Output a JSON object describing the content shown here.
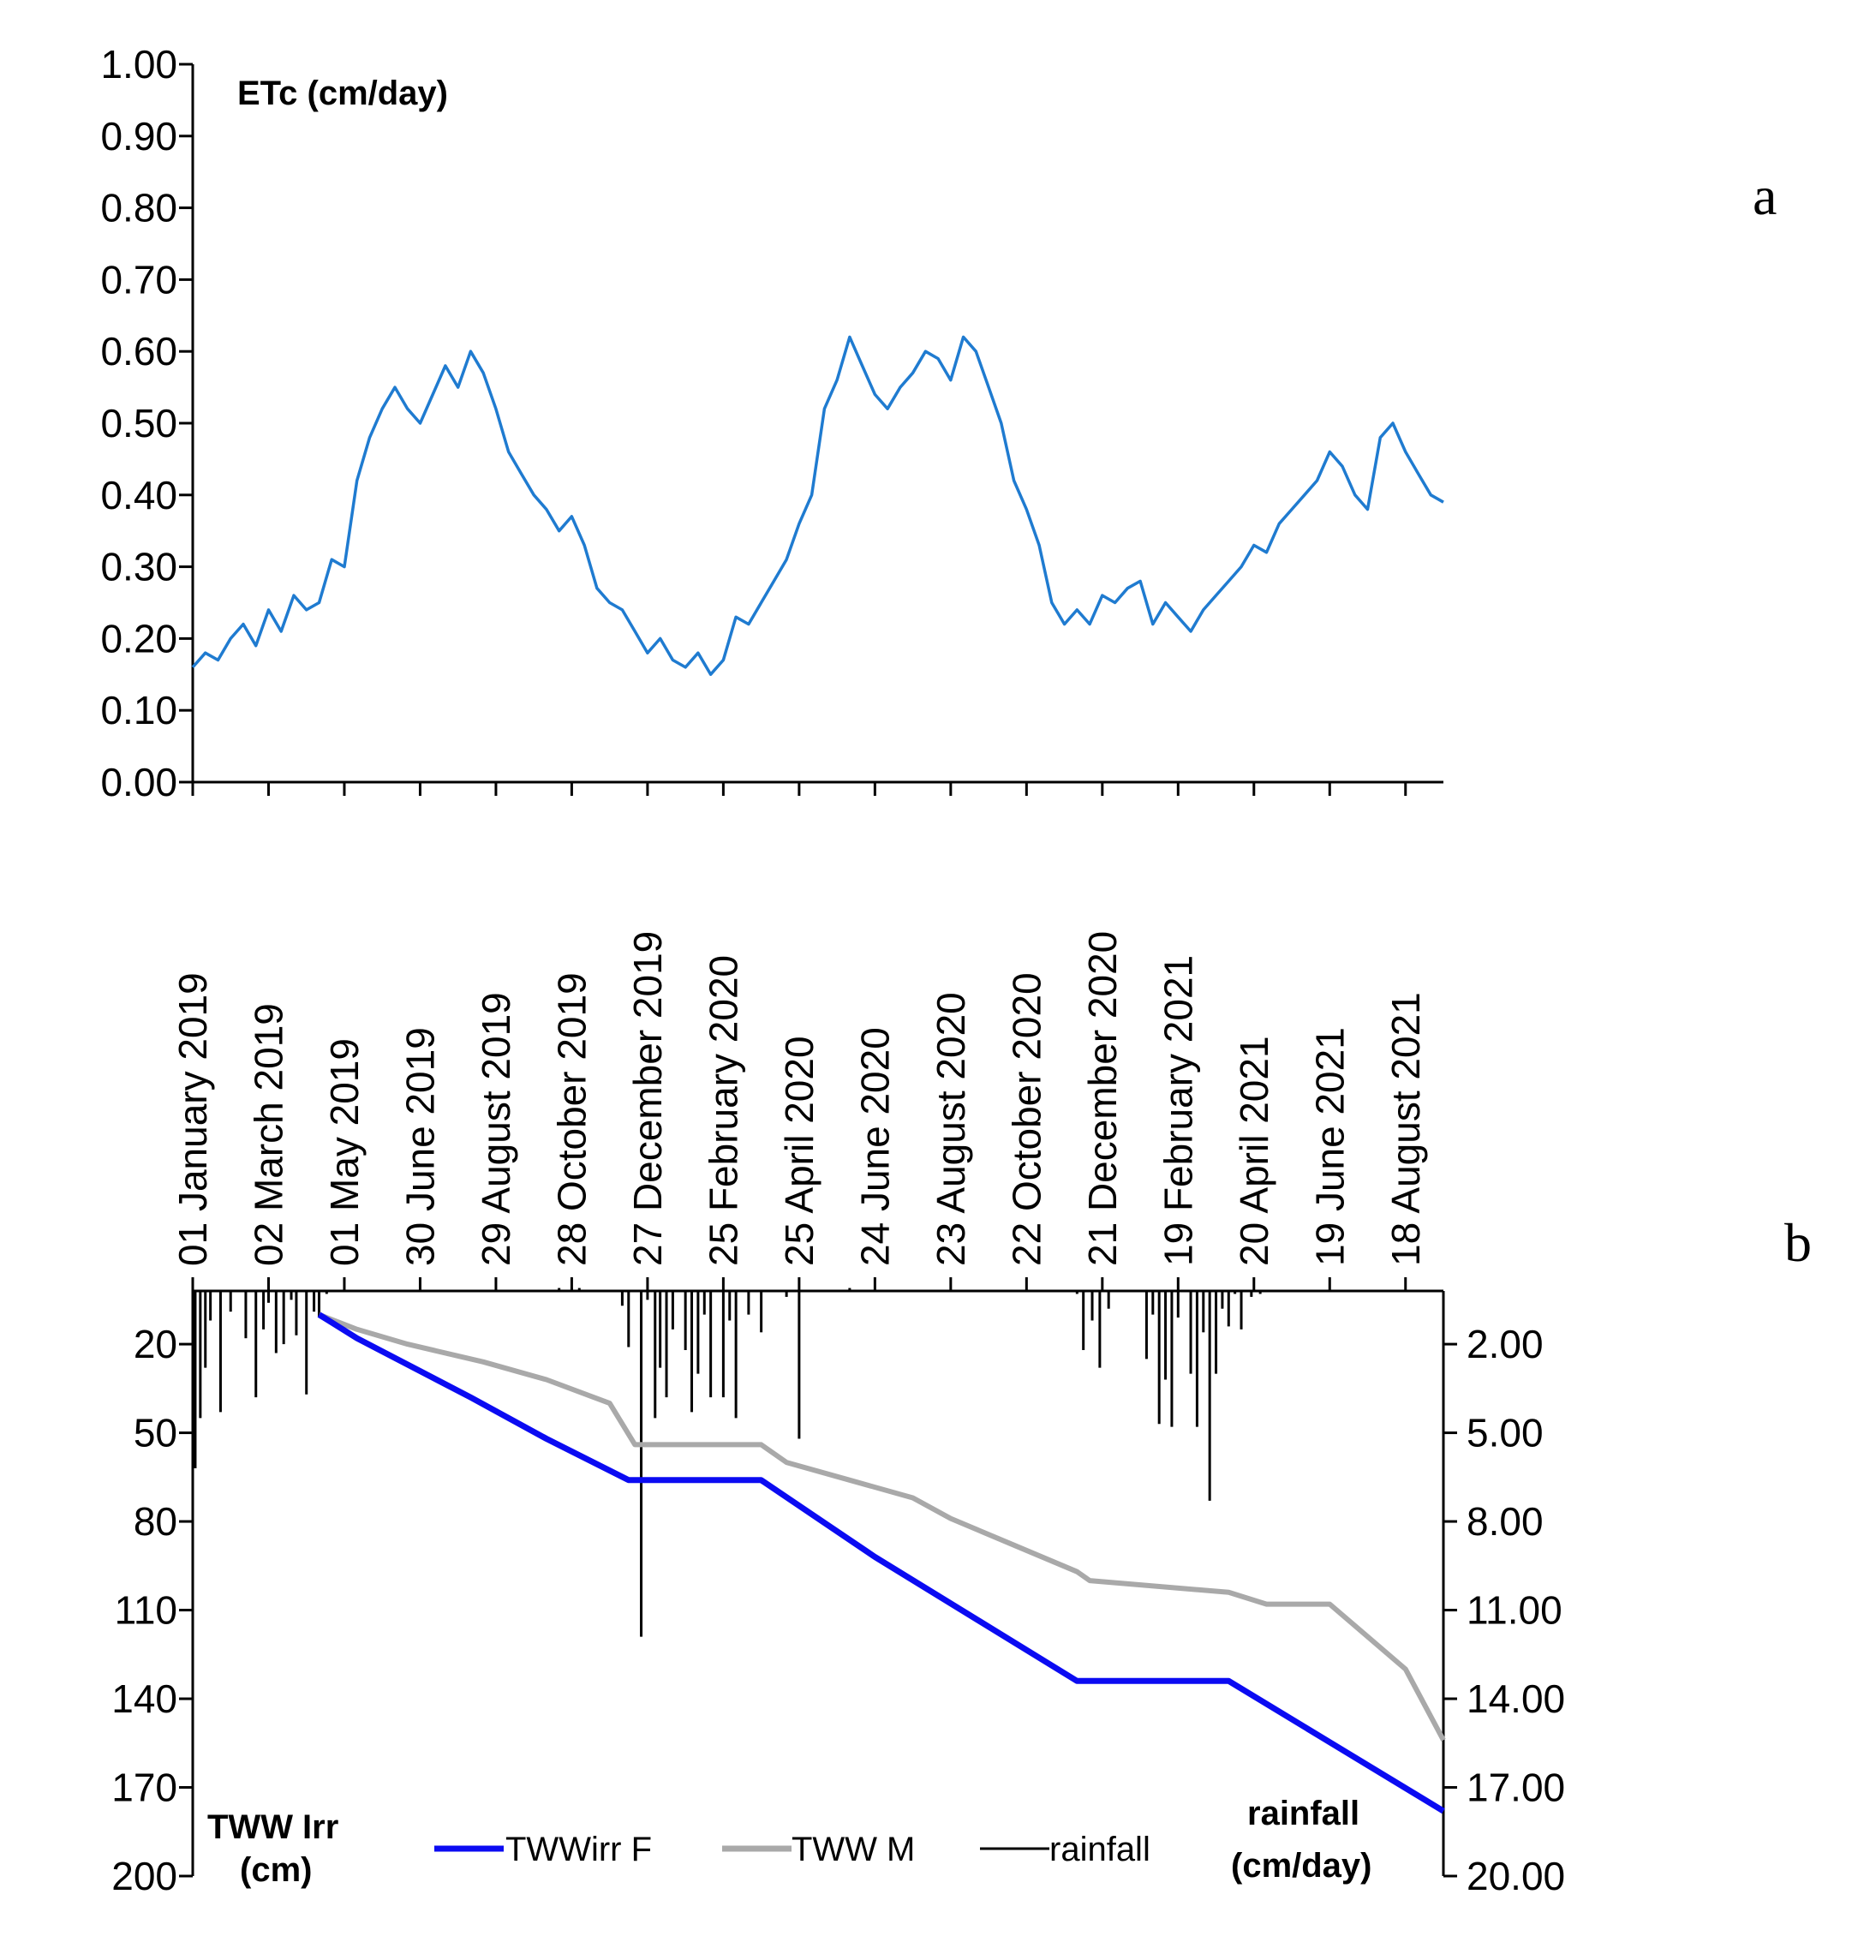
{
  "chart_data": [
    {
      "type": "line",
      "panel": "a",
      "ylabel": "ETc (cm/day)",
      "ylim": [
        0,
        1
      ],
      "y_ticks": [
        "0.00",
        "0.10",
        "0.20",
        "0.30",
        "0.40",
        "0.50",
        "0.60",
        "0.70",
        "0.80",
        "0.90",
        "1.00"
      ],
      "x_tick_labels": [
        "01 January 2019",
        "02 March 2019",
        "01 May 2019",
        "30 June 2019",
        "29 August 2019",
        "28 October 2019",
        "27 December 2019",
        "25 February 2020",
        "25 April 2020",
        "24 June 2020",
        "23 August 2020",
        "22 October 2020",
        "21 December 2020",
        "19 February 2021",
        "20 April 2021",
        "19 June 2021",
        "18 August 2021"
      ],
      "xlim_days": [
        0,
        990
      ],
      "series": [
        {
          "name": "ETc",
          "color": "#1f7bd0",
          "days": [
            0,
            10,
            20,
            30,
            40,
            50,
            60,
            70,
            80,
            90,
            100,
            110,
            120,
            130,
            140,
            150,
            160,
            170,
            180,
            190,
            200,
            210,
            220,
            230,
            240,
            250,
            260,
            270,
            280,
            290,
            300,
            310,
            320,
            330,
            340,
            350,
            360,
            370,
            380,
            390,
            400,
            410,
            420,
            430,
            440,
            450,
            460,
            470,
            480,
            490,
            500,
            510,
            520,
            530,
            540,
            550,
            560,
            570,
            580,
            590,
            600,
            610,
            620,
            630,
            640,
            650,
            660,
            670,
            680,
            690,
            700,
            710,
            720,
            730,
            740,
            750,
            760,
            770,
            780,
            790,
            800,
            810,
            820,
            830,
            840,
            850,
            860,
            870,
            880,
            890,
            900,
            910,
            920,
            930,
            940,
            950,
            960,
            970,
            980,
            990
          ],
          "values": [
            0.16,
            0.18,
            0.17,
            0.2,
            0.22,
            0.19,
            0.24,
            0.21,
            0.26,
            0.24,
            0.25,
            0.31,
            0.3,
            0.42,
            0.48,
            0.52,
            0.55,
            0.52,
            0.5,
            0.54,
            0.58,
            0.55,
            0.6,
            0.57,
            0.52,
            0.46,
            0.43,
            0.4,
            0.38,
            0.35,
            0.37,
            0.33,
            0.27,
            0.25,
            0.24,
            0.21,
            0.18,
            0.2,
            0.17,
            0.16,
            0.18,
            0.15,
            0.17,
            0.23,
            0.22,
            0.25,
            0.28,
            0.31,
            0.36,
            0.4,
            0.52,
            0.56,
            0.62,
            0.58,
            0.54,
            0.52,
            0.55,
            0.57,
            0.6,
            0.59,
            0.56,
            0.62,
            0.6,
            0.55,
            0.5,
            0.42,
            0.38,
            0.33,
            0.25,
            0.22,
            0.24,
            0.22,
            0.26,
            0.25,
            0.27,
            0.28,
            0.22,
            0.25,
            0.23,
            0.21,
            0.24,
            0.26,
            0.28,
            0.3,
            0.33,
            0.32,
            0.36,
            0.38,
            0.4,
            0.42,
            0.46,
            0.44,
            0.4,
            0.38,
            0.48,
            0.5,
            0.46,
            0.43,
            0.4,
            0.39
          ]
        }
      ]
    },
    {
      "type": "line",
      "panel": "b",
      "ylabel_left": "TWW Irr (cm)",
      "ylabel_right": "rainfall (cm/day)",
      "left_ticks": [
        "20",
        "50",
        "80",
        "110",
        "140",
        "170",
        "200"
      ],
      "right_ticks": [
        "2.00",
        "5.00",
        "8.00",
        "11.00",
        "14.00",
        "17.00",
        "20.00"
      ],
      "left_ylim": [
        2,
        200
      ],
      "right_ylim": [
        0.2,
        20
      ],
      "legend": [
        "TWWirr F",
        "TWW M",
        "rainfall"
      ],
      "series": [
        {
          "name": "TWWirr F",
          "color": "#0b0bf2",
          "axis": "left",
          "days": [
            100,
            130,
            220,
            280,
            345,
            350,
            450,
            540,
            700,
            720,
            820,
            990
          ],
          "values": [
            10,
            18,
            38,
            52,
            66,
            66,
            66,
            92,
            134,
            134,
            134,
            178
          ]
        },
        {
          "name": "TWW M",
          "color": "#a9a9a9",
          "axis": "left",
          "days": [
            100,
            130,
            170,
            230,
            280,
            330,
            350,
            450,
            470,
            520,
            570,
            600,
            650,
            700,
            710,
            820,
            850,
            900,
            960,
            990
          ],
          "values": [
            10,
            15,
            20,
            26,
            32,
            40,
            54,
            54,
            60,
            66,
            72,
            79,
            88,
            97,
            100,
            104,
            108,
            108,
            130,
            154
          ]
        },
        {
          "name": "rainfall",
          "color": "#000000",
          "axis": "right",
          "days": [
            2,
            6,
            10,
            14,
            22,
            30,
            42,
            50,
            56,
            60,
            66,
            72,
            78,
            82,
            90,
            96,
            100,
            106,
            290,
            296,
            300,
            306,
            340,
            345,
            355,
            360,
            366,
            370,
            375,
            380,
            390,
            395,
            400,
            405,
            410,
            420,
            425,
            430,
            440,
            450,
            470,
            480,
            520,
            690,
            700,
            705,
            712,
            718,
            725,
            755,
            760,
            765,
            770,
            775,
            780,
            790,
            795,
            800,
            805,
            810,
            815,
            820,
            825,
            830,
            838,
            845,
            850
          ],
          "values": [
            6.2,
            4.5,
            2.8,
            1.2,
            4.3,
            0.9,
            1.8,
            3.8,
            1.5,
            0.6,
            2.3,
            2.0,
            0.5,
            1.7,
            3.7,
            0.9,
            1.1,
            0.3,
            0.1,
            0.2,
            0.1,
            0.1,
            0.7,
            2.1,
            11.9,
            0.5,
            4.5,
            2.8,
            3.8,
            1.5,
            2.2,
            4.3,
            3.0,
            1.0,
            3.8,
            3.8,
            1.2,
            4.5,
            1.0,
            1.6,
            0.4,
            5.2,
            0.1,
            0.2,
            0.3,
            2.2,
            1.2,
            2.8,
            0.8,
            2.5,
            1.0,
            4.7,
            3.2,
            4.8,
            1.1,
            3.0,
            4.8,
            1.6,
            7.3,
            3.0,
            0.8,
            1.4,
            0.3,
            1.5,
            0.4,
            0.3,
            0.2
          ]
        }
      ]
    }
  ],
  "labels": {
    "panel_a": "a",
    "panel_b": "b",
    "a_ylabel": "ETc (cm/day)",
    "b_left_line1": "TWW Irr",
    "b_left_line2": "(cm)",
    "b_right_line1": "rainfall",
    "b_right_line2": "(cm/day)"
  }
}
